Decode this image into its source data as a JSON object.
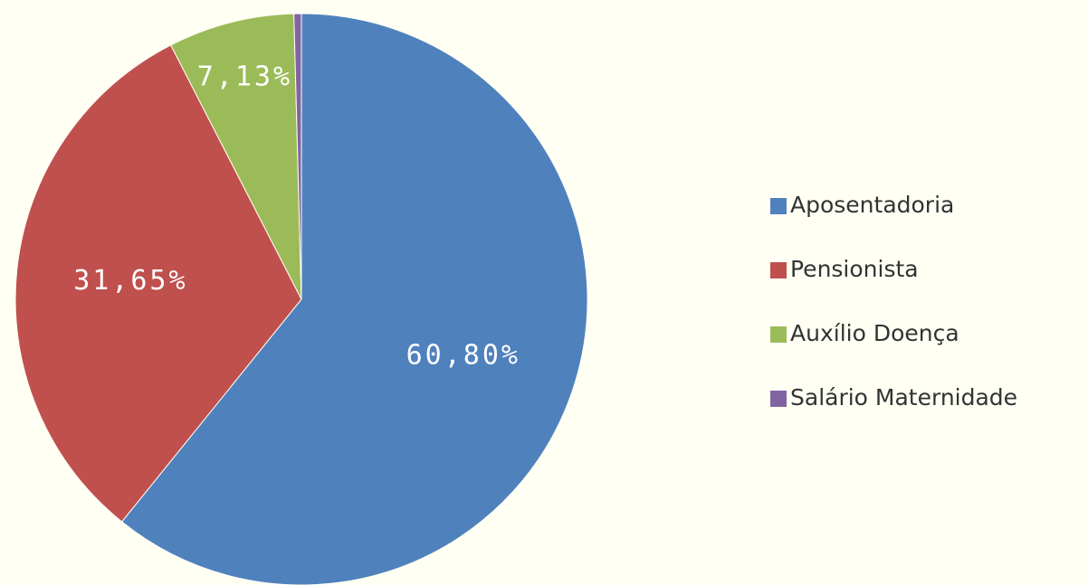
{
  "chart_data": {
    "type": "pie",
    "categories": [
      "Aposentadoria",
      "Pensionista",
      "Auxílio Doença",
      "Salário Maternidade"
    ],
    "values": [
      60.8,
      31.65,
      7.13,
      0.42
    ],
    "value_labels": [
      "60,80%",
      "31,65%",
      "7,13%",
      null
    ],
    "colors": [
      "#4f81bd",
      "#c0504d",
      "#9bbb59",
      "#8064a2"
    ],
    "legend": "right"
  }
}
